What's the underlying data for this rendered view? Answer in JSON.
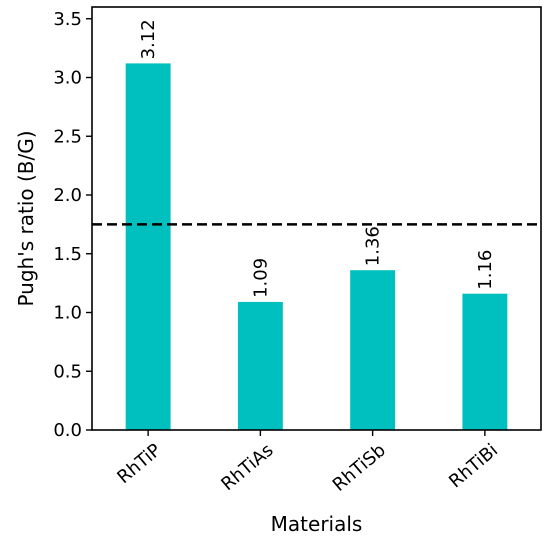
{
  "chart_data": {
    "type": "bar",
    "title": "",
    "xlabel": "Materials",
    "ylabel": "Pugh's ratio (B/G)",
    "categories": [
      "RhTiP",
      "RhTiAs",
      "RhTiSb",
      "RhTiBi"
    ],
    "values": [
      3.12,
      1.09,
      1.36,
      1.16
    ],
    "value_labels": [
      "3.12",
      "1.09",
      "1.36",
      "1.16"
    ],
    "ylim": [
      0,
      3.6
    ],
    "yticks": [
      0.0,
      0.5,
      1.0,
      1.5,
      2.0,
      2.5,
      3.0,
      3.5
    ],
    "ytick_labels": [
      "0.0",
      "0.5",
      "1.0",
      "1.5",
      "2.0",
      "2.5",
      "3.0",
      "3.5"
    ],
    "reference_line": {
      "value": 1.75,
      "style": "dashed"
    },
    "bar_color": "#00bfbf",
    "reference_line_color": "#000000",
    "grid": false,
    "legend": "none"
  }
}
